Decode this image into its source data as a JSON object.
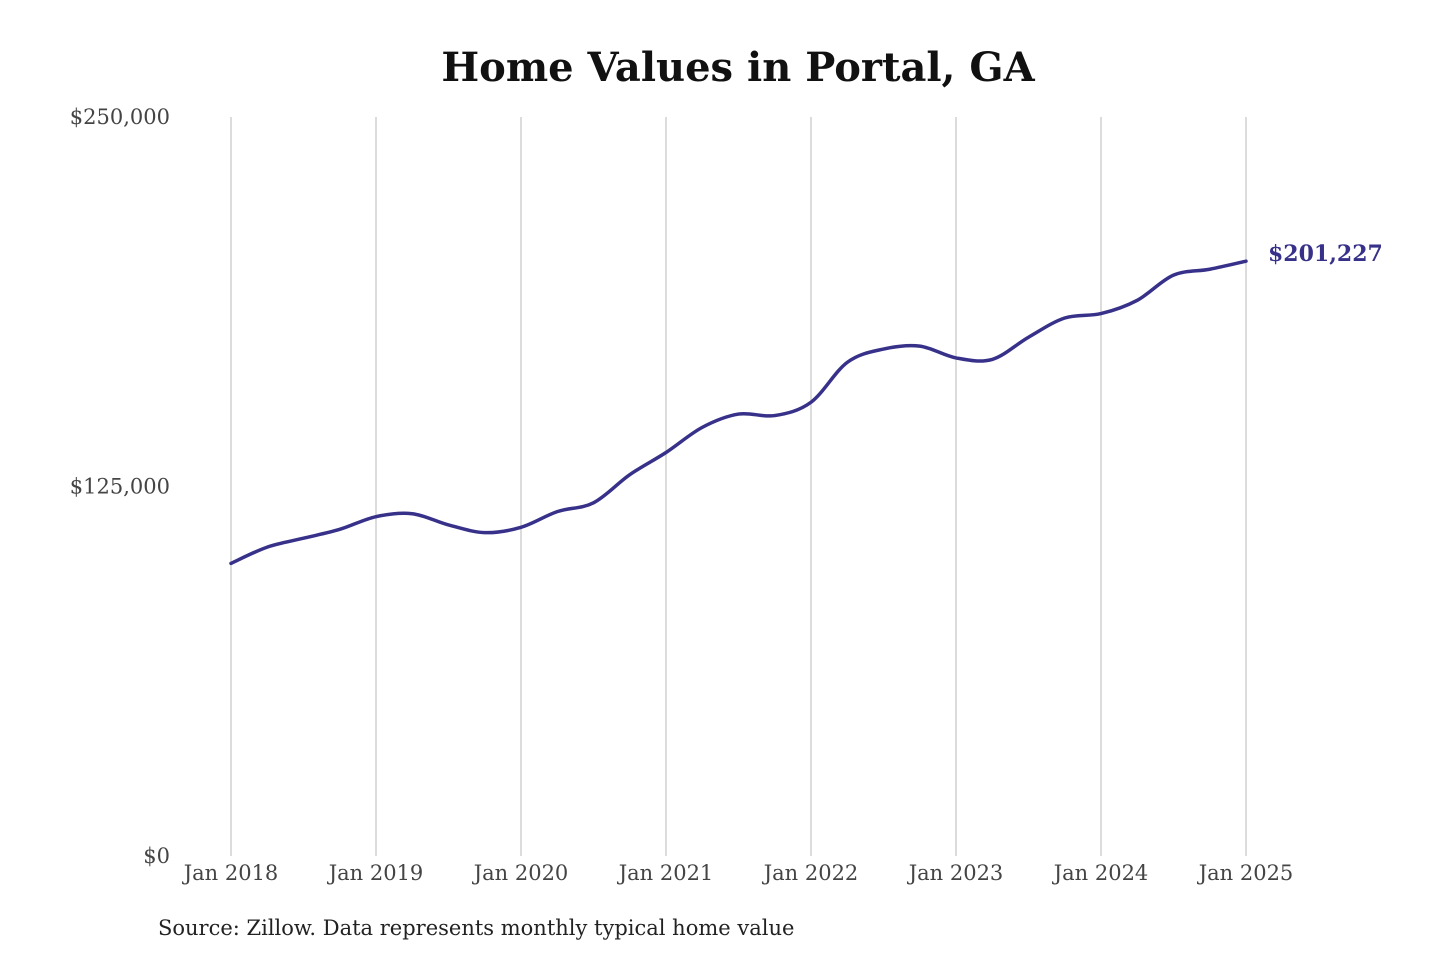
{
  "chart_data": {
    "type": "line",
    "title": "Home Values in Portal, GA",
    "xlabel": "",
    "ylabel": "",
    "ylim": [
      0,
      250000
    ],
    "y_ticks": [
      0,
      125000,
      250000
    ],
    "y_tick_labels": [
      "$0",
      "$125,000",
      "$250,000"
    ],
    "x_ticks": [
      "2018-01",
      "2019-01",
      "2020-01",
      "2021-01",
      "2022-01",
      "2023-01",
      "2024-01",
      "2025-01"
    ],
    "x_tick_labels": [
      "Jan 2018",
      "Jan 2019",
      "Jan 2020",
      "Jan 2021",
      "Jan 2022",
      "Jan 2023",
      "Jan 2024",
      "Jan 2025"
    ],
    "grid": "vertical",
    "series": [
      {
        "color": "#37318a",
        "end_label": "$201,227",
        "points": [
          {
            "x": "2018-01",
            "y": 99000
          },
          {
            "x": "2018-04",
            "y": 104500
          },
          {
            "x": "2018-07",
            "y": 107500
          },
          {
            "x": "2018-10",
            "y": 110500
          },
          {
            "x": "2019-01",
            "y": 114800
          },
          {
            "x": "2019-04",
            "y": 115800
          },
          {
            "x": "2019-07",
            "y": 112000
          },
          {
            "x": "2019-10",
            "y": 109400
          },
          {
            "x": "2020-01",
            "y": 111200
          },
          {
            "x": "2020-04",
            "y": 116500
          },
          {
            "x": "2020-07",
            "y": 119500
          },
          {
            "x": "2020-10",
            "y": 129000
          },
          {
            "x": "2021-01",
            "y": 136500
          },
          {
            "x": "2021-04",
            "y": 145000
          },
          {
            "x": "2021-07",
            "y": 149500
          },
          {
            "x": "2021-10",
            "y": 149000
          },
          {
            "x": "2022-01",
            "y": 153500
          },
          {
            "x": "2022-04",
            "y": 167000
          },
          {
            "x": "2022-07",
            "y": 171500
          },
          {
            "x": "2022-10",
            "y": 172500
          },
          {
            "x": "2023-01",
            "y": 168500
          },
          {
            "x": "2023-04",
            "y": 168000
          },
          {
            "x": "2023-07",
            "y": 175500
          },
          {
            "x": "2023-10",
            "y": 182000
          },
          {
            "x": "2024-01",
            "y": 183500
          },
          {
            "x": "2024-04",
            "y": 188000
          },
          {
            "x": "2024-07",
            "y": 196500
          },
          {
            "x": "2024-10",
            "y": 198500
          },
          {
            "x": "2025-01",
            "y": 201227
          }
        ]
      }
    ]
  },
  "source_note": "Source: Zillow. Data represents monthly typical home value"
}
